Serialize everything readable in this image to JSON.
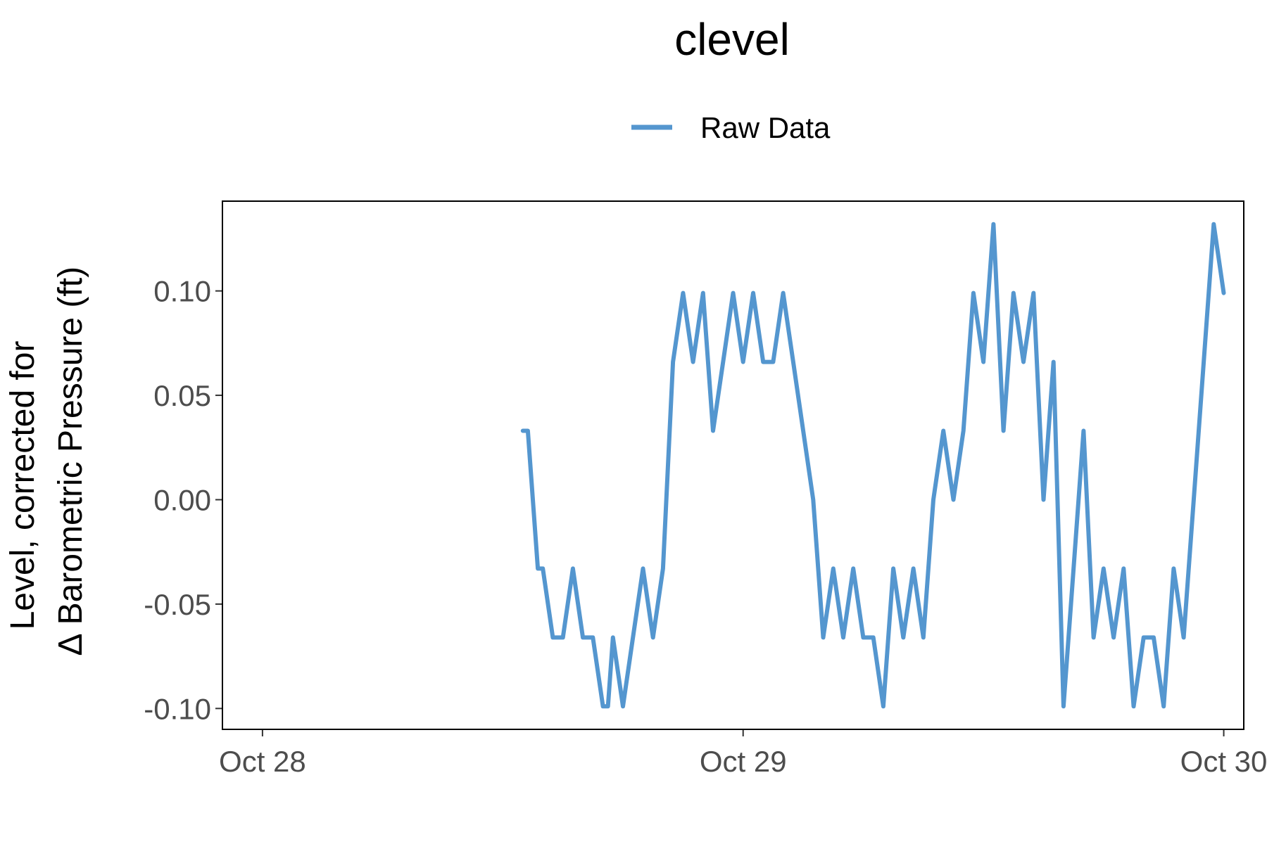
{
  "chart_data": {
    "type": "line",
    "title": "clevel",
    "ylabel_lines": [
      "Level, corrected for",
      "∆ Barometric Pressure (ft)"
    ],
    "xlabel": "",
    "x_ticks": [
      "Oct 28",
      "Oct 29",
      "Oct 30"
    ],
    "x_range": [
      "Oct 27 22:00",
      "Oct 30 01:00"
    ],
    "ylim": [
      -0.11,
      0.143
    ],
    "y_ticks": [
      "-0.10",
      "-0.05",
      "0.00",
      "0.05",
      "0.10"
    ],
    "legend_position": "top",
    "grid": false,
    "series": [
      {
        "name": "Raw Data",
        "color": "#5496cf",
        "x": [
          "Oct 28 13:00",
          "Oct 28 13:15",
          "Oct 28 13:30",
          "Oct 28 13:45",
          "Oct 28 14:00",
          "Oct 28 14:30",
          "Oct 28 15:00",
          "Oct 28 15:30",
          "Oct 28 16:00",
          "Oct 28 16:30",
          "Oct 28 17:00",
          "Oct 28 17:15",
          "Oct 28 17:30",
          "Oct 28 18:00",
          "Oct 28 18:30",
          "Oct 28 19:00",
          "Oct 28 19:30",
          "Oct 28 20:00",
          "Oct 28 20:30",
          "Oct 28 21:00",
          "Oct 28 21:30",
          "Oct 28 22:00",
          "Oct 28 22:30",
          "Oct 28 23:00",
          "Oct 28 23:30",
          "Oct 29 00:00",
          "Oct 29 00:30",
          "Oct 29 01:00",
          "Oct 29 01:30",
          "Oct 29 02:00",
          "Oct 29 02:30",
          "Oct 29 03:00",
          "Oct 29 03:30",
          "Oct 29 04:00",
          "Oct 29 04:30",
          "Oct 29 05:00",
          "Oct 29 05:30",
          "Oct 29 06:00",
          "Oct 29 06:30",
          "Oct 29 07:00",
          "Oct 29 07:30",
          "Oct 29 08:00",
          "Oct 29 08:30",
          "Oct 29 09:00",
          "Oct 29 09:30",
          "Oct 29 10:00",
          "Oct 29 10:30",
          "Oct 29 11:00",
          "Oct 29 11:30",
          "Oct 29 12:00",
          "Oct 29 12:30",
          "Oct 29 13:00",
          "Oct 29 13:30",
          "Oct 29 14:00",
          "Oct 29 14:30",
          "Oct 29 15:00",
          "Oct 29 15:30",
          "Oct 29 16:00",
          "Oct 29 16:30",
          "Oct 29 17:00",
          "Oct 29 17:30",
          "Oct 29 18:00",
          "Oct 29 18:30",
          "Oct 29 19:00",
          "Oct 29 19:30",
          "Oct 29 20:00",
          "Oct 29 20:30",
          "Oct 29 21:00",
          "Oct 29 21:30",
          "Oct 29 22:00",
          "Oct 29 22:30",
          "Oct 29 23:00",
          "Oct 29 23:30",
          "Oct 30 00:00"
        ],
        "y": [
          0.033,
          0.033,
          0.0,
          -0.033,
          -0.033,
          -0.066,
          -0.066,
          -0.033,
          -0.066,
          -0.066,
          -0.099,
          -0.099,
          -0.066,
          -0.099,
          -0.066,
          -0.033,
          -0.066,
          -0.033,
          0.066,
          0.099,
          0.066,
          0.099,
          0.033,
          0.066,
          0.099,
          0.066,
          0.099,
          0.066,
          0.066,
          0.099,
          0.066,
          0.033,
          0.0,
          -0.066,
          -0.033,
          -0.066,
          -0.033,
          -0.066,
          -0.066,
          -0.099,
          -0.033,
          -0.066,
          -0.033,
          -0.066,
          0.0,
          0.033,
          0.0,
          0.033,
          0.099,
          0.066,
          0.132,
          0.033,
          0.099,
          0.066,
          0.099,
          0.0,
          0.066,
          -0.099,
          -0.033,
          0.033,
          -0.066,
          -0.033,
          -0.066,
          -0.033,
          -0.099,
          -0.066,
          -0.066,
          -0.099,
          -0.033,
          -0.066,
          0.0,
          0.066,
          0.132,
          0.099
        ]
      }
    ]
  }
}
